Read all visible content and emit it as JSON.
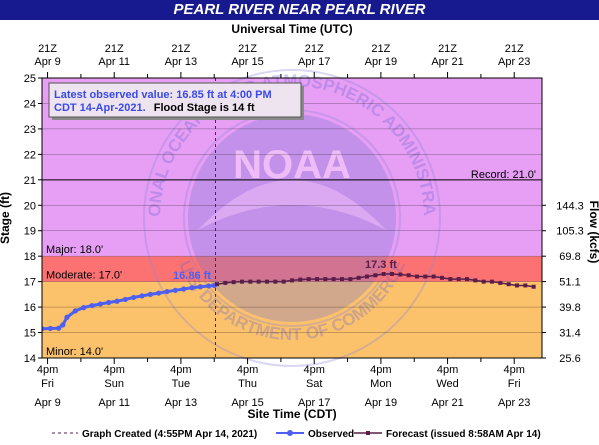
{
  "chart_data": {
    "type": "line",
    "title": "PEARL RIVER NEAR PEARL RIVER",
    "top_axis_title": "Universal Time (UTC)",
    "xlabel": "Site Time (CDT)",
    "ylabel": "Stage (ft)",
    "y2label": "Flow (kcfs)",
    "ylim": [
      14,
      25
    ],
    "yticks": [
      "14",
      "15",
      "16",
      "17",
      "18",
      "19",
      "20",
      "21",
      "22",
      "23",
      "24",
      "25"
    ],
    "y2_ticks": [
      {
        "stage": 14,
        "label": "25.6"
      },
      {
        "stage": 15,
        "label": "31.4"
      },
      {
        "stage": 16,
        "label": "39.8"
      },
      {
        "stage": 17,
        "label": "51.1"
      },
      {
        "stage": 18,
        "label": "69.8"
      },
      {
        "stage": 19,
        "label": "105.3"
      },
      {
        "stage": 20,
        "label": "144.3"
      }
    ],
    "xlim": [
      "2021-04-09 12:00",
      "2021-04-24 12:00"
    ],
    "bottom_ticks": [
      {
        "at": "2021-04-09 16:00",
        "l1": "4pm",
        "l2": "Fri",
        "l3": "Apr 9"
      },
      {
        "at": "2021-04-10 16:00",
        "l1": "",
        "l2": "",
        "l3": ""
      },
      {
        "at": "2021-04-11 16:00",
        "l1": "4pm",
        "l2": "Sun",
        "l3": "Apr 11"
      },
      {
        "at": "2021-04-12 16:00",
        "l1": "",
        "l2": "",
        "l3": ""
      },
      {
        "at": "2021-04-13 16:00",
        "l1": "4pm",
        "l2": "Tue",
        "l3": "Apr 13"
      },
      {
        "at": "2021-04-14 16:00",
        "l1": "",
        "l2": "",
        "l3": ""
      },
      {
        "at": "2021-04-15 16:00",
        "l1": "4pm",
        "l2": "Thu",
        "l3": "Apr 15"
      },
      {
        "at": "2021-04-16 16:00",
        "l1": "",
        "l2": "",
        "l3": ""
      },
      {
        "at": "2021-04-17 16:00",
        "l1": "4pm",
        "l2": "Sat",
        "l3": "Apr 17"
      },
      {
        "at": "2021-04-18 16:00",
        "l1": "",
        "l2": "",
        "l3": ""
      },
      {
        "at": "2021-04-19 16:00",
        "l1": "4pm",
        "l2": "Mon",
        "l3": "Apr 19"
      },
      {
        "at": "2021-04-20 16:00",
        "l1": "",
        "l2": "",
        "l3": ""
      },
      {
        "at": "2021-04-21 16:00",
        "l1": "4pm",
        "l2": "Wed",
        "l3": "Apr 21"
      },
      {
        "at": "2021-04-22 16:00",
        "l1": "",
        "l2": "",
        "l3": ""
      },
      {
        "at": "2021-04-23 16:00",
        "l1": "4pm",
        "l2": "Fri",
        "l3": "Apr 23"
      }
    ],
    "top_ticks": [
      {
        "at": "2021-04-09 16:00",
        "l1": "21Z",
        "l2": "Apr  9"
      },
      {
        "at": "2021-04-10 16:00",
        "l1": "",
        "l2": ""
      },
      {
        "at": "2021-04-11 16:00",
        "l1": "21Z",
        "l2": "Apr 11"
      },
      {
        "at": "2021-04-12 16:00",
        "l1": "",
        "l2": ""
      },
      {
        "at": "2021-04-13 16:00",
        "l1": "21Z",
        "l2": "Apr 13"
      },
      {
        "at": "2021-04-14 16:00",
        "l1": "",
        "l2": ""
      },
      {
        "at": "2021-04-15 16:00",
        "l1": "21Z",
        "l2": "Apr 15"
      },
      {
        "at": "2021-04-16 16:00",
        "l1": "",
        "l2": ""
      },
      {
        "at": "2021-04-17 16:00",
        "l1": "21Z",
        "l2": "Apr 17"
      },
      {
        "at": "2021-04-18 16:00",
        "l1": "",
        "l2": ""
      },
      {
        "at": "2021-04-19 16:00",
        "l1": "21Z",
        "l2": "Apr 19"
      },
      {
        "at": "2021-04-20 16:00",
        "l1": "",
        "l2": ""
      },
      {
        "at": "2021-04-21 16:00",
        "l1": "21Z",
        "l2": "Apr 21"
      },
      {
        "at": "2021-04-22 16:00",
        "l1": "",
        "l2": ""
      },
      {
        "at": "2021-04-23 16:00",
        "l1": "21Z",
        "l2": "Apr 23"
      }
    ],
    "bands": [
      {
        "name": "minor",
        "from": 14,
        "to": 17,
        "color": "#fcc16b"
      },
      {
        "name": "moderate",
        "from": 17,
        "to": 18,
        "color": "#fc7272"
      },
      {
        "name": "major",
        "from": 18,
        "to": 25,
        "color": "#e79ef5"
      }
    ],
    "stage_labels": [
      {
        "text": "Minor: 14.0'",
        "stage": 14
      },
      {
        "text": "Moderate: 17.0'",
        "stage": 17
      },
      {
        "text": "Major: 18.0'",
        "stage": 18
      }
    ],
    "record": {
      "text": "Record: 21.0'",
      "stage": 21.0
    },
    "graph_created": "2021-04-14 16:55",
    "series": [
      {
        "name": "Observed",
        "color": "#4d5ff0",
        "points": [
          [
            "2021-04-09 12:00",
            15.15
          ],
          [
            "2021-04-09 18:00",
            15.16
          ],
          [
            "2021-04-10 00:00",
            15.17
          ],
          [
            "2021-04-10 03:00",
            15.3
          ],
          [
            "2021-04-10 06:00",
            15.6
          ],
          [
            "2021-04-10 12:00",
            15.85
          ],
          [
            "2021-04-10 18:00",
            15.98
          ],
          [
            "2021-04-11 00:00",
            16.06
          ],
          [
            "2021-04-11 06:00",
            16.12
          ],
          [
            "2021-04-11 12:00",
            16.18
          ],
          [
            "2021-04-11 18:00",
            16.23
          ],
          [
            "2021-04-12 00:00",
            16.3
          ],
          [
            "2021-04-12 06:00",
            16.38
          ],
          [
            "2021-04-12 12:00",
            16.44
          ],
          [
            "2021-04-12 18:00",
            16.5
          ],
          [
            "2021-04-13 00:00",
            16.55
          ],
          [
            "2021-04-13 06:00",
            16.61
          ],
          [
            "2021-04-13 12:00",
            16.66
          ],
          [
            "2021-04-13 18:00",
            16.71
          ],
          [
            "2021-04-14 00:00",
            16.76
          ],
          [
            "2021-04-14 06:00",
            16.8
          ],
          [
            "2021-04-14 12:00",
            16.83
          ],
          [
            "2021-04-14 16:00",
            16.85
          ]
        ]
      },
      {
        "name": "Forecast",
        "color": "#5a1e4b",
        "points": [
          [
            "2021-04-14 18:00",
            16.9
          ],
          [
            "2021-04-15 00:00",
            16.95
          ],
          [
            "2021-04-15 06:00",
            16.98
          ],
          [
            "2021-04-15 12:00",
            17.0
          ],
          [
            "2021-04-15 18:00",
            17.0
          ],
          [
            "2021-04-16 00:00",
            17.0
          ],
          [
            "2021-04-16 06:00",
            17.0
          ],
          [
            "2021-04-16 12:00",
            17.0
          ],
          [
            "2021-04-16 18:00",
            17.0
          ],
          [
            "2021-04-17 00:00",
            17.05
          ],
          [
            "2021-04-17 06:00",
            17.08
          ],
          [
            "2021-04-17 12:00",
            17.1
          ],
          [
            "2021-04-17 18:00",
            17.1
          ],
          [
            "2021-04-18 00:00",
            17.1
          ],
          [
            "2021-04-18 06:00",
            17.1
          ],
          [
            "2021-04-18 12:00",
            17.1
          ],
          [
            "2021-04-18 18:00",
            17.1
          ],
          [
            "2021-04-19 00:00",
            17.15
          ],
          [
            "2021-04-19 06:00",
            17.2
          ],
          [
            "2021-04-19 12:00",
            17.25
          ],
          [
            "2021-04-19 18:00",
            17.3
          ],
          [
            "2021-04-20 00:00",
            17.3
          ],
          [
            "2021-04-20 06:00",
            17.28
          ],
          [
            "2021-04-20 12:00",
            17.25
          ],
          [
            "2021-04-20 18:00",
            17.2
          ],
          [
            "2021-04-21 00:00",
            17.2
          ],
          [
            "2021-04-21 06:00",
            17.2
          ],
          [
            "2021-04-21 12:00",
            17.15
          ],
          [
            "2021-04-21 18:00",
            17.1
          ],
          [
            "2021-04-22 00:00",
            17.1
          ],
          [
            "2021-04-22 06:00",
            17.1
          ],
          [
            "2021-04-22 12:00",
            17.05
          ],
          [
            "2021-04-22 18:00",
            17.0
          ],
          [
            "2021-04-23 00:00",
            17.0
          ],
          [
            "2021-04-23 06:00",
            16.95
          ],
          [
            "2021-04-23 12:00",
            16.9
          ],
          [
            "2021-04-23 18:00",
            16.85
          ],
          [
            "2021-04-24 00:00",
            16.85
          ],
          [
            "2021-04-24 06:00",
            16.8
          ]
        ]
      }
    ],
    "annotations": [
      {
        "text": "16.86 ft",
        "at": "2021-04-14 00:00",
        "stage": 16.86,
        "color": "#4d5ff0"
      },
      {
        "text": "17.3 ft",
        "at": "2021-04-19 16:00",
        "stage": 17.3,
        "color": "#5a1e4b"
      }
    ],
    "info_box": {
      "line1": "Latest observed value: 16.85 ft at 4:00 PM",
      "line2a": "CDT 14-Apr-2021.",
      "line2b": "Flood Stage is 14 ft"
    },
    "watermark": {
      "center": "NOAA",
      "ring": "NATIONAL OCEANIC AND ATMOSPHERIC ADMINISTRATION",
      "bottom": "U.S. DEPARTMENT OF COMMERCE"
    },
    "legend": {
      "created": "Graph Created (4:55PM Apr 14, 2021)",
      "observed": "Observed",
      "forecast": "Forecast (issued 8:58AM Apr 14)"
    },
    "colors": {
      "banner": "#17198f",
      "grid": "#000000",
      "observed": "#4d5ff0",
      "forecast": "#5a1e4b",
      "info_text": "#3a4ae8"
    }
  }
}
